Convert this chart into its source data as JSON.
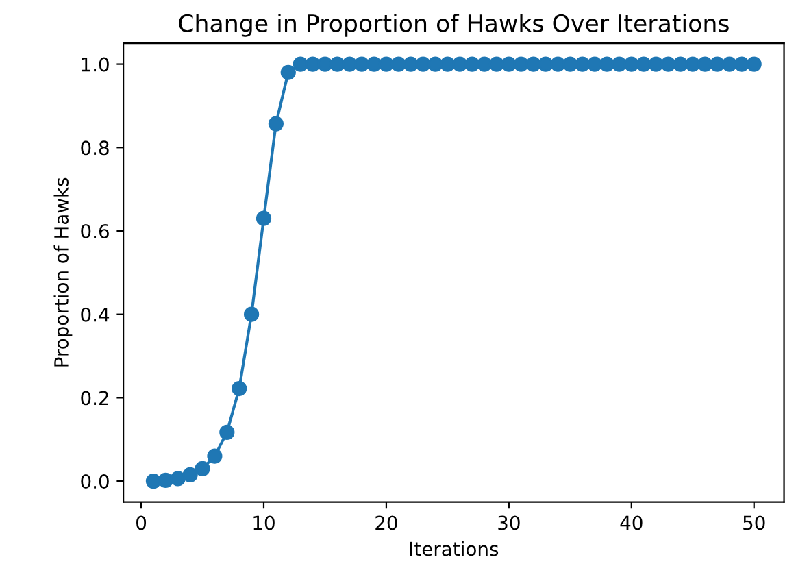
{
  "chart_data": {
    "type": "line",
    "title": "Change in Proportion of Hawks Over Iterations",
    "xlabel": "Iterations",
    "ylabel": "Proportion of Hawks",
    "x": [
      1,
      2,
      3,
      4,
      5,
      6,
      7,
      8,
      9,
      10,
      11,
      12,
      13,
      14,
      15,
      16,
      17,
      18,
      19,
      20,
      21,
      22,
      23,
      24,
      25,
      26,
      27,
      28,
      29,
      30,
      31,
      32,
      33,
      34,
      35,
      36,
      37,
      38,
      39,
      40,
      41,
      42,
      43,
      44,
      45,
      46,
      47,
      48,
      49,
      50
    ],
    "series": [
      {
        "color": "#1f77b4",
        "values": [
          0.0,
          0.002,
          0.006,
          0.015,
          0.03,
          0.06,
          0.117,
          0.222,
          0.4,
          0.63,
          0.857,
          0.98,
          1,
          1,
          1,
          1,
          1,
          1,
          1,
          1,
          1,
          1,
          1,
          1,
          1,
          1,
          1,
          1,
          1,
          1,
          1,
          1,
          1,
          1,
          1,
          1,
          1,
          1,
          1,
          1,
          1,
          1,
          1,
          1,
          1,
          1,
          1,
          1,
          1,
          1
        ]
      }
    ],
    "xlim": [
      -1.45,
      52.45
    ],
    "ylim": [
      -0.05,
      1.05
    ],
    "xticks": [
      0,
      10,
      20,
      30,
      40,
      50
    ],
    "yticks": [
      {
        "value": 0,
        "label": "0.0"
      },
      {
        "value": 0.2,
        "label": "0.2"
      },
      {
        "value": 0.4,
        "label": "0.4"
      },
      {
        "value": 0.6,
        "label": "0.6"
      },
      {
        "value": 0.8,
        "label": "0.8"
      },
      {
        "value": 1,
        "label": "1.0"
      }
    ],
    "marker": "circle",
    "line_style": "solid"
  }
}
